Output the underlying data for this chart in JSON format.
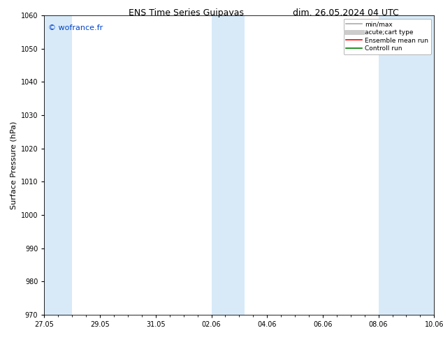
{
  "title_left": "ENS Time Series Guipavas",
  "title_right": "dim. 26.05.2024 04 UTC",
  "ylabel": "Surface Pressure (hPa)",
  "ylim": [
    970,
    1060
  ],
  "yticks": [
    970,
    980,
    990,
    1000,
    1010,
    1020,
    1030,
    1040,
    1050,
    1060
  ],
  "xtick_labels": [
    "27.05",
    "29.05",
    "31.05",
    "02.06",
    "04.06",
    "06.06",
    "08.06",
    "10.06"
  ],
  "watermark": "© wofrance.fr",
  "watermark_color": "#0044cc",
  "shaded_color": "#d8eaf8",
  "bg_color": "#ffffff",
  "legend_entries": [
    {
      "label": "min/max",
      "color": "#aaaaaa",
      "lw": 1.2
    },
    {
      "label": "acute;cart type",
      "color": "#cccccc",
      "lw": 5
    },
    {
      "label": "Ensemble mean run",
      "color": "#ff0000",
      "lw": 1.2
    },
    {
      "label": "Controll run",
      "color": "#008000",
      "lw": 1.2
    }
  ],
  "title_fontsize": 9,
  "ylabel_fontsize": 8,
  "tick_fontsize": 7,
  "legend_fontsize": 6.5,
  "watermark_fontsize": 8
}
